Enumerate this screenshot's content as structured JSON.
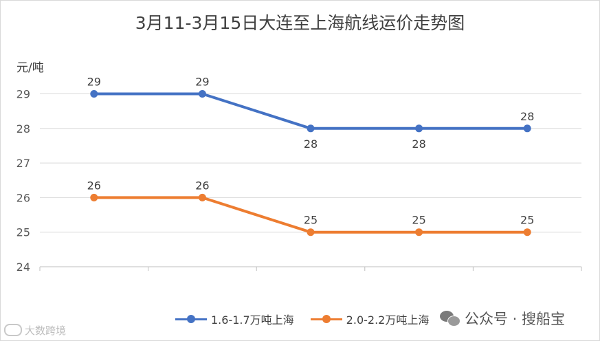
{
  "chart_data": {
    "type": "line",
    "title": "3月11-3月15日大连至上海航线运价走势图",
    "ylabel": "元/吨",
    "xlabel": "",
    "ylim": [
      24,
      29.95
    ],
    "yticks": [
      24,
      25,
      26,
      27,
      28,
      29
    ],
    "categories": [
      "",
      "",
      "",
      "",
      ""
    ],
    "grid": true,
    "legend_position": "bottom",
    "series": [
      {
        "name": "1.6-1.7万吨上海",
        "color": "#4472c4",
        "values": [
          29,
          29,
          28,
          28,
          28
        ],
        "label_side": [
          "above",
          "above",
          "below",
          "below",
          "above"
        ]
      },
      {
        "name": "2.0-2.2万吨上海",
        "color": "#ed7d31",
        "values": [
          26,
          26,
          25,
          25,
          25
        ],
        "label_side": [
          "above",
          "above",
          "above",
          "above",
          "above"
        ]
      }
    ]
  },
  "branding": {
    "wechat_text": "公众号 · 搜船宝",
    "watermark_text": "大数跨境"
  }
}
